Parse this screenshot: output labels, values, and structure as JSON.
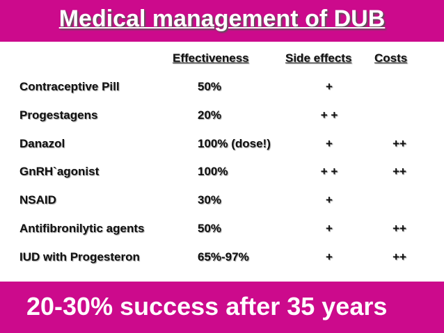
{
  "title": "Medical management of DUB",
  "table": {
    "header": [
      "Effectiveness",
      "Side effects",
      "Costs"
    ],
    "rows": [
      [
        "Contraceptive Pill",
        "50%",
        "+"
      ],
      [
        "Progestagens",
        "20%",
        "+ +"
      ],
      [
        "Danazol",
        "100% (dose!)",
        "+",
        "++"
      ],
      [
        "GnRH`agonist",
        "100%",
        "+ +",
        "++"
      ],
      [
        "NSAID",
        "30%",
        "+"
      ],
      [
        "Antifibronilytic agents",
        "50%",
        "+",
        "++"
      ],
      [
        "IUD with Progesteron",
        "65%-97%",
        "+",
        "++"
      ]
    ]
  },
  "footer": "20-30% success after 35 years"
}
